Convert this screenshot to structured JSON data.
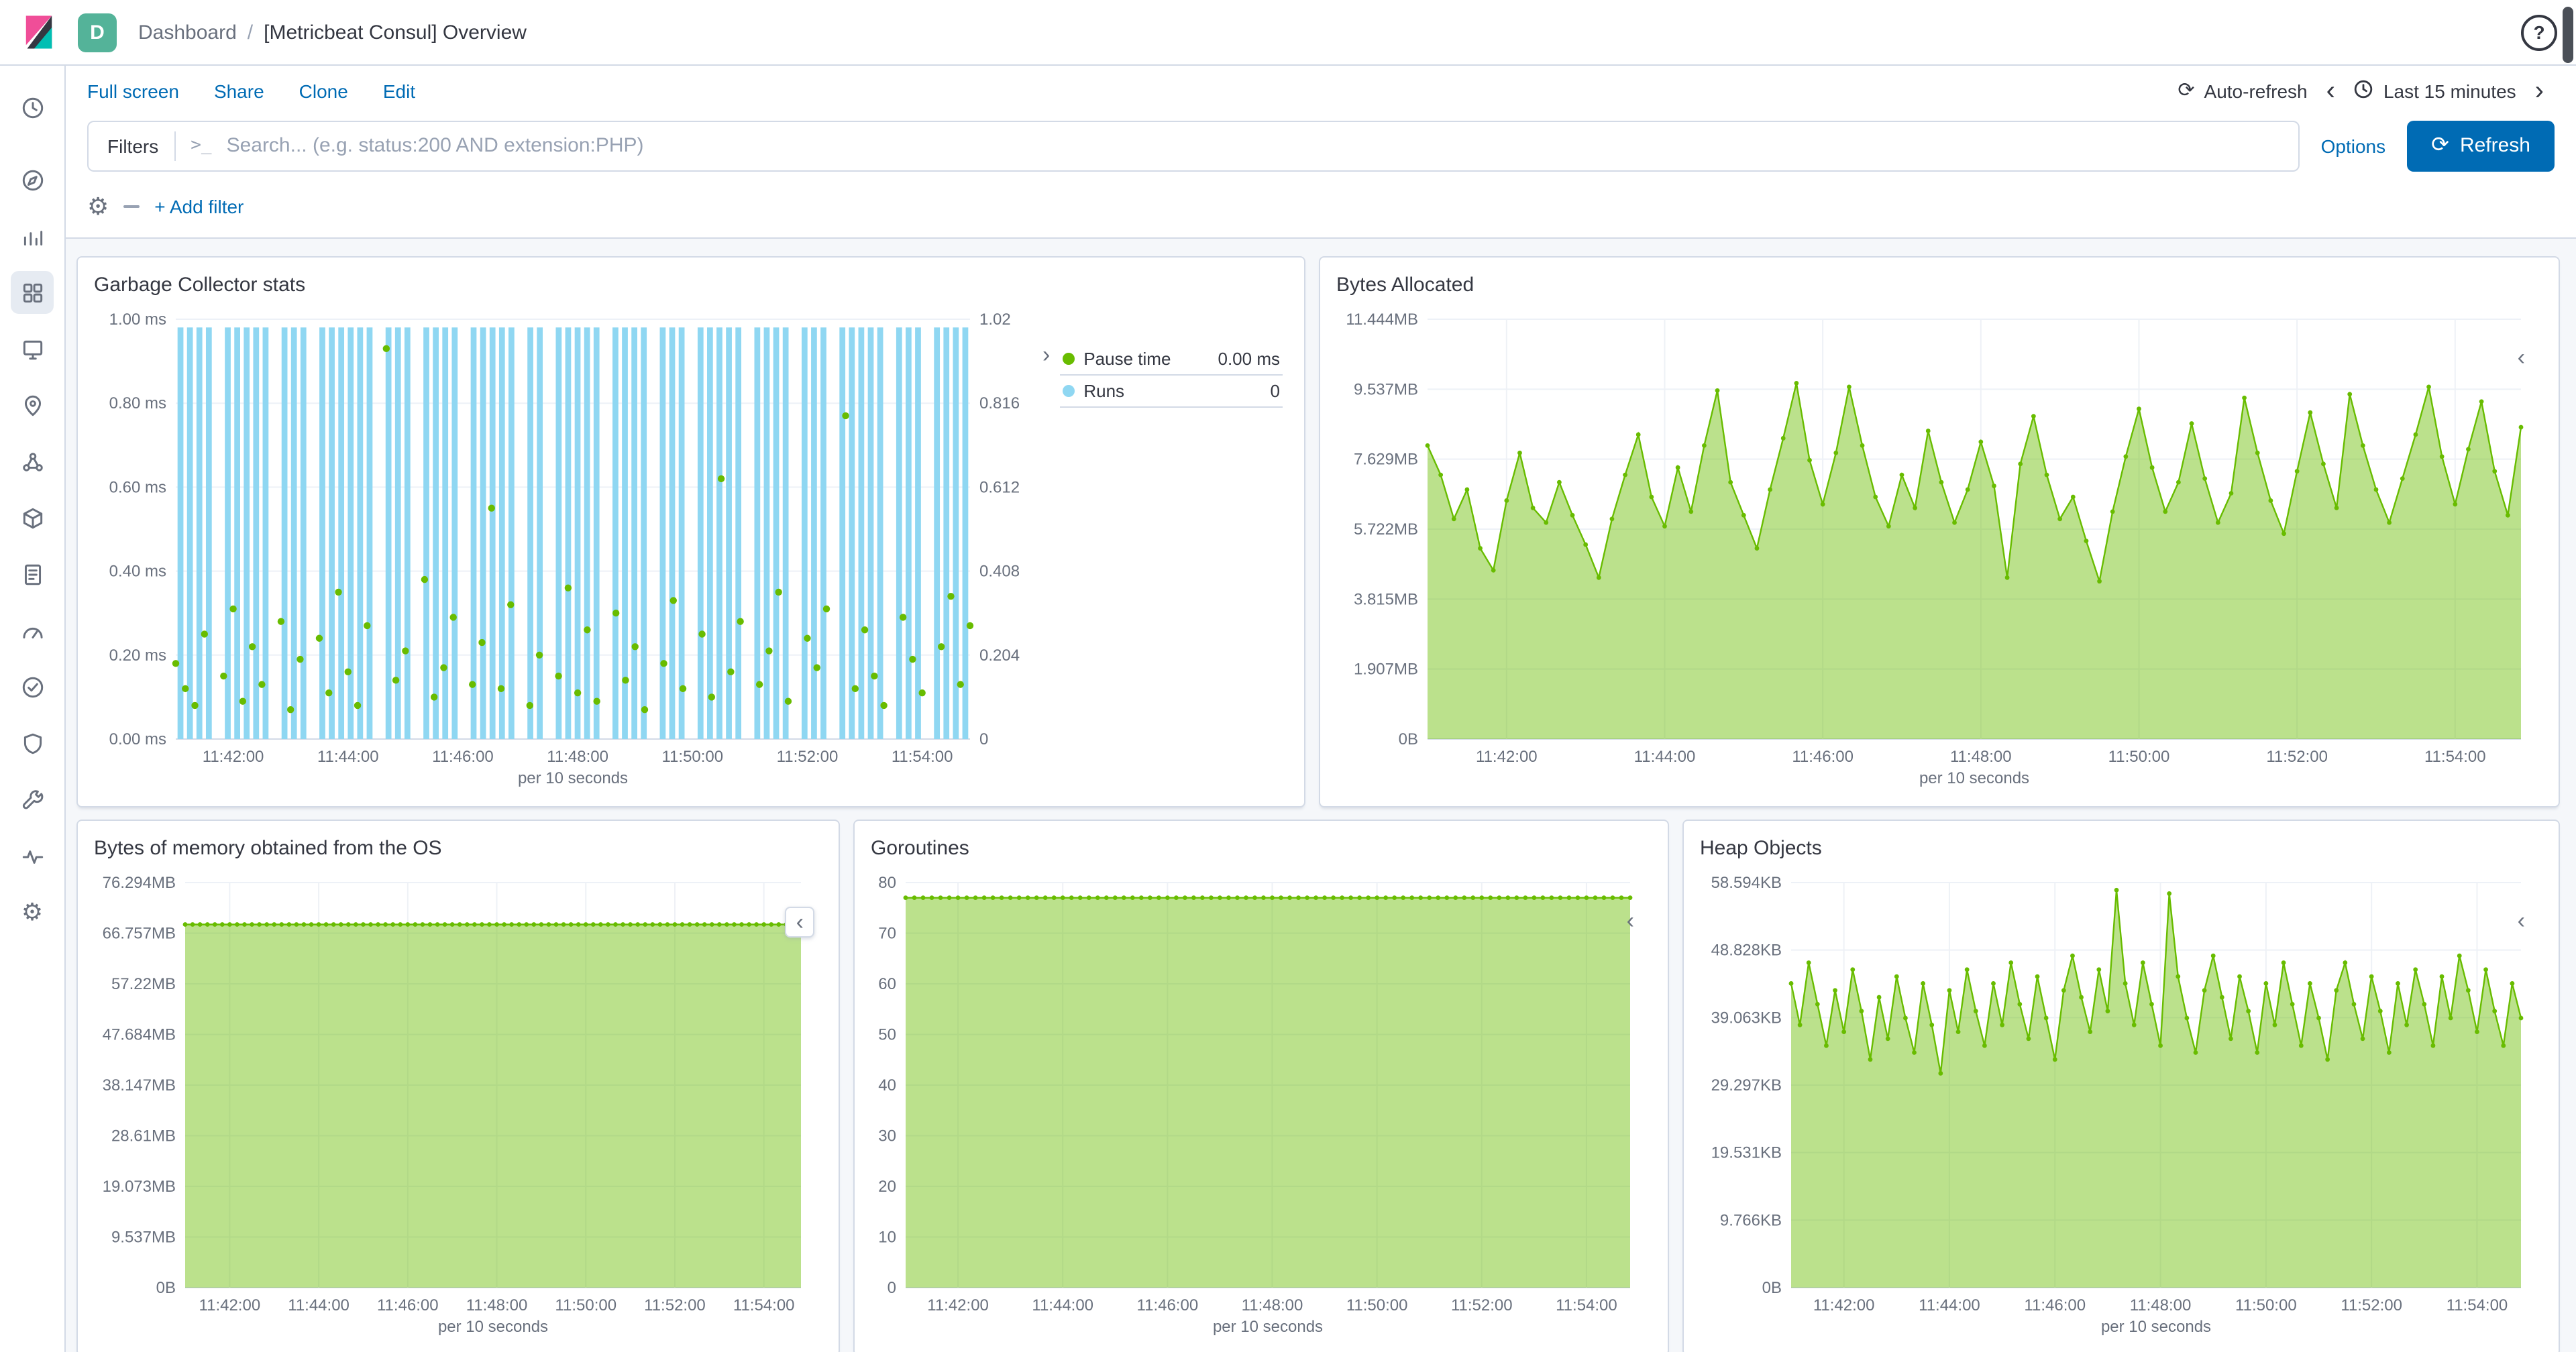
{
  "icons": {
    "help": "?",
    "chevron_left": "‹",
    "chevron_right": "›",
    "refresh": "⟳",
    "gear": "⚙"
  },
  "topbar": {
    "space_badge": "D",
    "breadcrumb": {
      "section": "Dashboard",
      "separator": "/",
      "page": "[Metricbeat Consul] Overview"
    }
  },
  "toolbar": {
    "links": [
      "Full screen",
      "Share",
      "Clone",
      "Edit"
    ],
    "auto_refresh_label": "Auto-refresh",
    "time_range_label": "Last 15 minutes"
  },
  "query_bar": {
    "filters_label": "Filters",
    "prompt": ">_",
    "placeholder": "Search... (e.g. status:200 AND extension:PHP)",
    "options_label": "Options",
    "refresh_label": "Refresh"
  },
  "filter_bar": {
    "add_filter_label": "+ Add filter"
  },
  "sidebar": {
    "items": [
      {
        "name": "recently-viewed",
        "icon": "clock",
        "active": false,
        "divider_after": true
      },
      {
        "name": "discover",
        "icon": "discover",
        "active": false
      },
      {
        "name": "visualize",
        "icon": "visualize",
        "active": false
      },
      {
        "name": "dashboard",
        "icon": "dashboard",
        "active": true
      },
      {
        "name": "canvas",
        "icon": "canvas",
        "active": false
      },
      {
        "name": "maps",
        "icon": "maps",
        "active": false
      },
      {
        "name": "machine-learning",
        "icon": "ml",
        "active": false
      },
      {
        "name": "infrastructure",
        "icon": "infrastructure",
        "active": false
      },
      {
        "name": "logs",
        "icon": "logs",
        "active": false
      },
      {
        "name": "apm",
        "icon": "apm",
        "active": false
      },
      {
        "name": "uptime",
        "icon": "uptime",
        "active": false
      },
      {
        "name": "siem",
        "icon": "siem",
        "active": false
      },
      {
        "name": "dev-tools",
        "icon": "devtools",
        "active": false
      },
      {
        "name": "monitoring",
        "icon": "monitoring",
        "active": false
      },
      {
        "name": "management",
        "icon": "gear",
        "active": false
      }
    ]
  },
  "colors": {
    "link": "#006BB4",
    "primary_button": "#006BB4",
    "page_background": "#F5F7FA",
    "panel_border": "#D3DAE6",
    "text": "#343741",
    "text_subdued": "#69707D",
    "area_green_stroke": "#68BC00",
    "area_green_fill": "rgba(104,188,0,0.45)",
    "bar_blue": "#8FD7F2",
    "space_badge_green": "#54B399"
  },
  "chart_data": [
    {
      "panel_title": "Garbage Collector stats",
      "type": "dual",
      "n": 84,
      "x_tick_positions": [
        6,
        18,
        30,
        42,
        54,
        66,
        78
      ],
      "x_tick_labels": [
        "11:42:00",
        "11:44:00",
        "11:46:00",
        "11:48:00",
        "11:50:00",
        "11:52:00",
        "11:54:00"
      ],
      "x_caption": "per 10 seconds",
      "left_axis": {
        "labels": [
          "0.00 ms",
          "0.20 ms",
          "0.40 ms",
          "0.60 ms",
          "0.80 ms",
          "1.00 ms"
        ],
        "max": 1.0
      },
      "right_axis": {
        "labels": [
          "0",
          "0.204",
          "0.408",
          "0.612",
          "0.816",
          "1.02"
        ],
        "max": 1.02
      },
      "legend": [
        {
          "label": "Pause time",
          "value": "0.00 ms",
          "color": "#68BC00"
        },
        {
          "label": "Runs",
          "value": "0",
          "color": "#8FD7F2"
        }
      ],
      "series": [
        {
          "name": "Runs",
          "kind": "bars",
          "axis": "right",
          "color": "#8FD7F2",
          "values": [
            1,
            1,
            1,
            1,
            0,
            1,
            1,
            1,
            1,
            1,
            0,
            1,
            1,
            1,
            0,
            1,
            1,
            1,
            1,
            1,
            1,
            0,
            1,
            1,
            1,
            0,
            1,
            1,
            1,
            1,
            0,
            1,
            1,
            1,
            1,
            1,
            0,
            1,
            1,
            0,
            1,
            1,
            1,
            1,
            1,
            0,
            1,
            1,
            1,
            1,
            0,
            1,
            1,
            1,
            0,
            1,
            1,
            1,
            1,
            1,
            0,
            1,
            1,
            1,
            1,
            0,
            1,
            1,
            1,
            0,
            1,
            1,
            1,
            1,
            1,
            0,
            1,
            1,
            1,
            0,
            1,
            1,
            1,
            1
          ]
        },
        {
          "name": "Pause time",
          "kind": "points",
          "axis": "left",
          "color": "#68BC00",
          "values": [
            0.18,
            0.12,
            0.08,
            0.25,
            null,
            0.15,
            0.31,
            0.09,
            0.22,
            0.13,
            null,
            0.28,
            0.07,
            0.19,
            null,
            0.24,
            0.11,
            0.35,
            0.16,
            0.08,
            0.27,
            null,
            0.93,
            0.14,
            0.21,
            null,
            0.38,
            0.1,
            0.17,
            0.29,
            null,
            0.13,
            0.23,
            0.55,
            0.12,
            0.32,
            null,
            0.08,
            0.2,
            null,
            0.15,
            0.36,
            0.11,
            0.26,
            0.09,
            null,
            0.3,
            0.14,
            0.22,
            0.07,
            null,
            0.18,
            0.33,
            0.12,
            null,
            0.25,
            0.1,
            0.62,
            0.16,
            0.28,
            null,
            0.13,
            0.21,
            0.35,
            0.09,
            null,
            0.24,
            0.17,
            0.31,
            null,
            0.77,
            0.12,
            0.26,
            0.15,
            0.08,
            null,
            0.29,
            0.19,
            0.11,
            null,
            0.22,
            0.34,
            0.13,
            0.27
          ]
        }
      ]
    },
    {
      "panel_title": "Bytes Allocated",
      "type": "area",
      "n": 84,
      "x_tick_positions": [
        6,
        18,
        30,
        42,
        54,
        66,
        78
      ],
      "x_tick_labels": [
        "11:42:00",
        "11:44:00",
        "11:46:00",
        "11:48:00",
        "11:50:00",
        "11:52:00",
        "11:54:00"
      ],
      "x_caption": "per 10 seconds",
      "y_axis": {
        "labels": [
          "0B",
          "1.907MB",
          "3.815MB",
          "5.722MB",
          "7.629MB",
          "9.537MB",
          "11.444MB"
        ],
        "max": 11.444,
        "unit": "MB"
      },
      "series": [
        {
          "name": "Bytes Allocated",
          "kind": "area",
          "color": "#68BC00",
          "fill": "rgba(104,188,0,0.45)",
          "values": [
            8.0,
            7.2,
            6.0,
            6.8,
            5.2,
            4.6,
            6.5,
            7.8,
            6.3,
            5.9,
            7.0,
            6.1,
            5.3,
            4.4,
            6.0,
            7.2,
            8.3,
            6.6,
            5.8,
            7.4,
            6.2,
            8.0,
            9.5,
            7.0,
            6.1,
            5.2,
            6.8,
            8.2,
            9.7,
            7.6,
            6.4,
            7.8,
            9.6,
            8.0,
            6.6,
            5.8,
            7.2,
            6.3,
            8.4,
            7.0,
            5.9,
            6.8,
            8.1,
            6.9,
            4.4,
            7.5,
            8.8,
            7.2,
            6.0,
            6.6,
            5.4,
            4.3,
            6.2,
            7.7,
            9.0,
            7.4,
            6.2,
            7.0,
            8.6,
            7.1,
            5.9,
            6.7,
            9.3,
            7.8,
            6.5,
            5.6,
            7.3,
            8.9,
            7.5,
            6.3,
            9.4,
            8.0,
            6.8,
            5.9,
            7.1,
            8.3,
            9.6,
            7.7,
            6.4,
            7.9,
            9.2,
            7.3,
            6.1,
            8.5
          ]
        }
      ]
    },
    {
      "panel_title": "Bytes of memory obtained from the OS",
      "type": "area",
      "n": 84,
      "x_tick_positions": [
        6,
        18,
        30,
        42,
        54,
        66,
        78
      ],
      "x_tick_labels": [
        "11:42:00",
        "11:44:00",
        "11:46:00",
        "11:48:00",
        "11:50:00",
        "11:52:00",
        "11:54:00"
      ],
      "x_caption": "per 10 seconds",
      "y_axis": {
        "labels": [
          "0B",
          "9.537MB",
          "19.073MB",
          "28.61MB",
          "38.147MB",
          "47.684MB",
          "57.22MB",
          "66.757MB",
          "76.294MB"
        ],
        "max": 76.294,
        "unit": "MB"
      },
      "series": [
        {
          "name": "Bytes of memory obtained from the OS",
          "kind": "area",
          "color": "#68BC00",
          "fill": "rgba(104,188,0,0.45)",
          "constant": 68.4
        }
      ]
    },
    {
      "panel_title": "Goroutines",
      "type": "area",
      "n": 84,
      "x_tick_positions": [
        6,
        18,
        30,
        42,
        54,
        66,
        78
      ],
      "x_tick_labels": [
        "11:42:00",
        "11:44:00",
        "11:46:00",
        "11:48:00",
        "11:50:00",
        "11:52:00",
        "11:54:00"
      ],
      "x_caption": "per 10 seconds",
      "y_axis": {
        "labels": [
          "0",
          "10",
          "20",
          "30",
          "40",
          "50",
          "60",
          "70",
          "80"
        ],
        "max": 80,
        "unit": ""
      },
      "series": [
        {
          "name": "Goroutines",
          "kind": "area",
          "color": "#68BC00",
          "fill": "rgba(104,188,0,0.45)",
          "constant": 77
        }
      ]
    },
    {
      "panel_title": "Heap Objects",
      "type": "area",
      "n": 84,
      "x_tick_positions": [
        6,
        18,
        30,
        42,
        54,
        66,
        78
      ],
      "x_tick_labels": [
        "11:42:00",
        "11:44:00",
        "11:46:00",
        "11:48:00",
        "11:50:00",
        "11:52:00",
        "11:54:00"
      ],
      "x_caption": "per 10 seconds",
      "y_axis": {
        "labels": [
          "0B",
          "9.766KB",
          "19.531KB",
          "29.297KB",
          "39.063KB",
          "48.828KB",
          "58.594KB"
        ],
        "max": 58.594,
        "unit": "KB"
      },
      "series": [
        {
          "name": "Heap Objects",
          "kind": "area",
          "color": "#68BC00",
          "fill": "rgba(104,188,0,0.45)",
          "values": [
            44,
            38,
            47,
            41,
            35,
            43,
            37,
            46,
            40,
            33,
            42,
            36,
            45,
            39,
            34,
            44,
            38,
            31,
            43,
            37,
            46,
            40,
            35,
            44,
            38,
            47,
            41,
            36,
            45,
            39,
            33,
            43,
            48,
            42,
            37,
            46,
            40,
            57.5,
            44,
            38,
            47,
            41,
            35,
            57,
            45,
            39,
            34,
            43,
            48,
            42,
            36,
            45,
            40,
            34,
            44,
            38,
            47,
            41,
            35,
            44,
            39,
            33,
            43,
            47,
            41,
            36,
            45,
            40,
            34,
            44,
            38,
            46,
            41,
            35,
            45,
            39,
            48,
            43,
            37,
            46,
            40,
            35,
            44,
            39
          ]
        }
      ]
    }
  ]
}
